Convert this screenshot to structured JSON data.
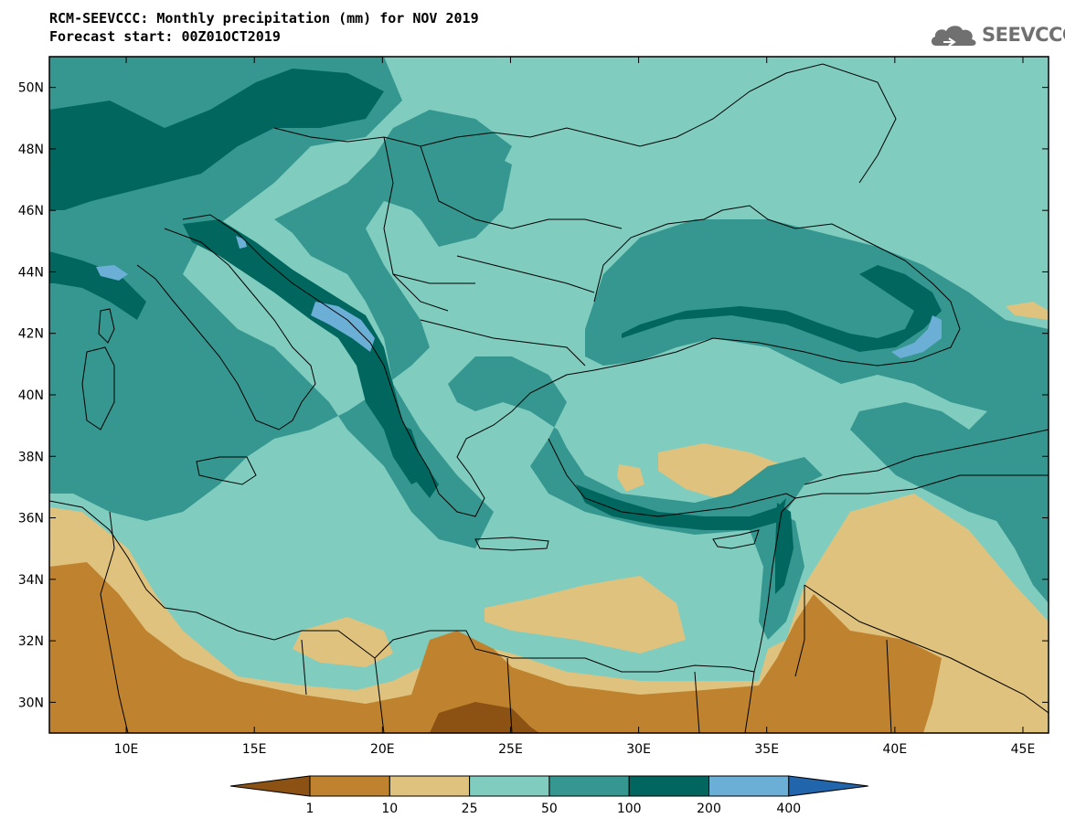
{
  "header": {
    "title_line1": "RCM-SEEVCCC: Monthly precipitation (mm) for NOV 2019",
    "title_line2": "Forecast start: 00Z01OCT2019"
  },
  "logo": {
    "text": "SEEVCCC",
    "icon": "cloud-icon",
    "color": "#707070"
  },
  "map": {
    "projection": "lat-lon",
    "lon_range": [
      7,
      46
    ],
    "lat_range": [
      29,
      51
    ],
    "lon_ticks": [
      {
        "value": 10,
        "label": "10E"
      },
      {
        "value": 15,
        "label": "15E"
      },
      {
        "value": 20,
        "label": "20E"
      },
      {
        "value": 25,
        "label": "25E"
      },
      {
        "value": 30,
        "label": "30E"
      },
      {
        "value": 35,
        "label": "35E"
      },
      {
        "value": 40,
        "label": "40E"
      },
      {
        "value": 45,
        "label": "45E"
      }
    ],
    "lat_ticks": [
      {
        "value": 50,
        "label": "50N"
      },
      {
        "value": 48,
        "label": "48N"
      },
      {
        "value": 46,
        "label": "46N"
      },
      {
        "value": 44,
        "label": "44N"
      },
      {
        "value": 42,
        "label": "42N"
      },
      {
        "value": 40,
        "label": "40N"
      },
      {
        "value": 38,
        "label": "38N"
      },
      {
        "value": 36,
        "label": "36N"
      },
      {
        "value": 34,
        "label": "34N"
      },
      {
        "value": 32,
        "label": "32N"
      },
      {
        "value": 30,
        "label": "30N"
      }
    ]
  },
  "colorbar": {
    "colors": [
      "#8c5214",
      "#bf8330",
      "#dfc27d",
      "#80cdc0",
      "#35978f",
      "#01665e",
      "#6baed6",
      "#2166ac"
    ],
    "labels": [
      "1",
      "10",
      "25",
      "50",
      "100",
      "200",
      "400"
    ]
  }
}
